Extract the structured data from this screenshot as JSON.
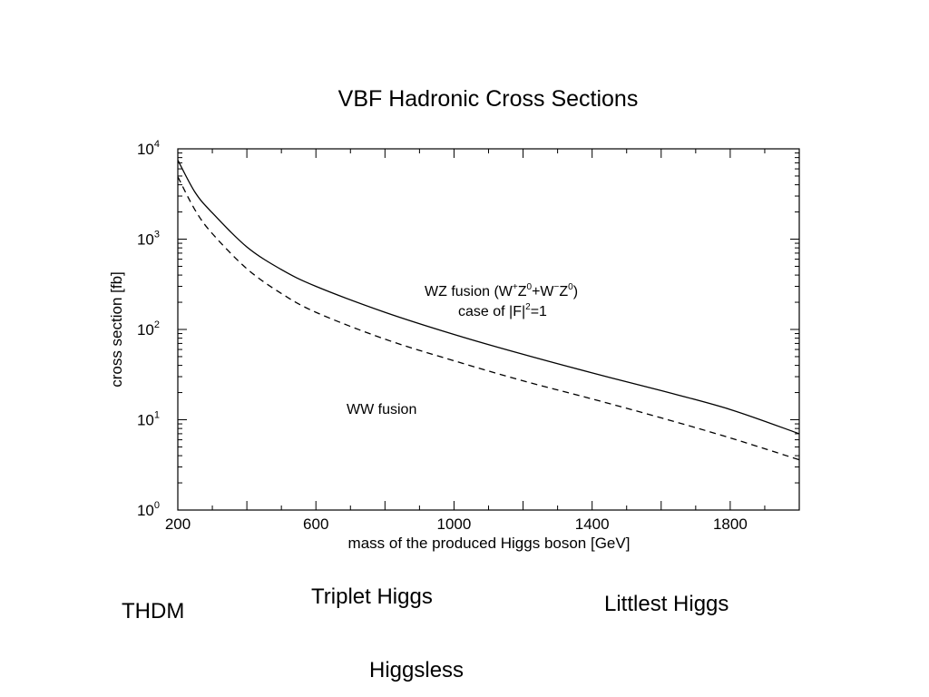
{
  "chart_data": {
    "type": "line",
    "title": "VBF Hadronic Cross Sections",
    "xlabel": "mass of the produced Higgs boson [GeV]",
    "ylabel": "cross section [fb]",
    "xlim": [
      200,
      2000
    ],
    "ylim": [
      1,
      10000
    ],
    "yscale": "log",
    "xticks": [
      200,
      600,
      1000,
      1400,
      1800
    ],
    "yticks": [
      {
        "value": 1,
        "base": "10",
        "exp": "0"
      },
      {
        "value": 10,
        "base": "10",
        "exp": "1"
      },
      {
        "value": 100,
        "base": "10",
        "exp": "2"
      },
      {
        "value": 1000,
        "base": "10",
        "exp": "3"
      },
      {
        "value": 10000,
        "base": "10",
        "exp": "4"
      }
    ],
    "grid": false,
    "x": [
      200,
      250,
      300,
      400,
      500,
      600,
      800,
      1000,
      1200,
      1400,
      1600,
      1800,
      2000
    ],
    "series": [
      {
        "style": "solid",
        "values": [
          7500,
          3300,
          1950,
          820,
          460,
          300,
          155,
          88,
          53,
          33,
          21,
          13,
          7
        ]
      },
      {
        "style": "dashed",
        "values": [
          4900,
          2100,
          1150,
          470,
          250,
          155,
          78,
          45,
          27,
          17,
          10.5,
          6.3,
          3.6
        ]
      }
    ],
    "annotations": {
      "wz": {
        "prefix": "WZ fusion (W",
        "s1": "+",
        "z1": "Z",
        "s2": "0",
        "plus": "+W",
        "s3": "−",
        "z2": "Z",
        "s4": "0",
        "close": ")",
        "line2_a": "case of |F|",
        "line2_sup": "2",
        "line2_b": "=1"
      },
      "ww": "WW fusion"
    }
  },
  "labels": {
    "thdm": "THDM",
    "triplet": "Triplet Higgs",
    "littlest": "Littlest Higgs",
    "higgsless": "Higgsless"
  }
}
